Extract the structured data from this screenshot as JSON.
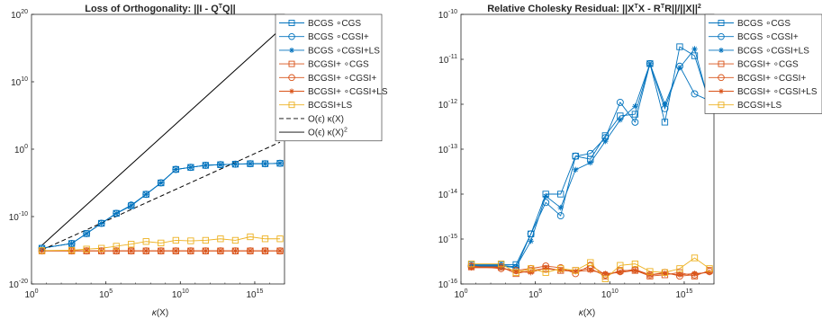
{
  "figure": {
    "left_title": "Loss of Orthogonality: ||I - Q",
    "left_title_sup": "T",
    "left_title_end": "Q||",
    "right_title": "Relative Cholesky Residual: ||X",
    "right_title_sup1": "T",
    "right_title_mid": "X - R",
    "right_title_sup2": "T",
    "right_title_mid2": "R||/||X||",
    "right_title_sup3": "2",
    "xlabel_kappa": "κ",
    "xlabel_arg": "(X)"
  },
  "colors": {
    "blue": "#0072BD",
    "orange": "#D95319",
    "yellow": "#EDB120",
    "black": "#000000"
  },
  "chart_data": [
    {
      "type": "line",
      "title": "Loss of Orthogonality: ||I - Q^T Q||",
      "xlabel": "κ(X)",
      "ylabel": "",
      "xscale": "log",
      "yscale": "log",
      "xlim": [
        1,
        1e+17
      ],
      "ylim": [
        1e-20,
        1e+20
      ],
      "xticks": [
        {
          "base": "10",
          "exp": "0",
          "value": 1
        },
        {
          "base": "10",
          "exp": "5",
          "value": 100000.0
        },
        {
          "base": "10",
          "exp": "10",
          "value": 10000000000.0
        },
        {
          "base": "10",
          "exp": "15",
          "value": 1000000000000000.0
        }
      ],
      "yticks": [
        {
          "base": "10",
          "exp": "-20",
          "value": 1e-20
        },
        {
          "base": "10",
          "exp": "-10",
          "value": 1e-10
        },
        {
          "base": "10",
          "exp": "0",
          "value": 1
        },
        {
          "base": "10",
          "exp": "10",
          "value": 10000000000.0
        },
        {
          "base": "10",
          "exp": "20",
          "value": 1e+20
        }
      ],
      "legend_position": "right",
      "x": [
        5.0,
        500.0,
        5000.0,
        50000.0,
        500000.0,
        5000000.0,
        50000000.0,
        500000000.0,
        5000000000.0,
        50000000000.0,
        500000000000.0,
        5000000000000.0,
        50000000000000.0,
        500000000000000.0,
        5000000000000000.0,
        5e+16
      ],
      "series": [
        {
          "name": "BCGS ∘CGS",
          "color": "blue",
          "marker": "square",
          "style": "solid",
          "values": [
            2e-15,
            1e-14,
            3e-13,
            1e-11,
            3e-10,
            4e-09,
            2e-07,
            1e-05,
            0.001,
            0.002,
            0.004,
            0.005,
            0.006,
            0.007,
            0.007,
            0.008
          ]
        },
        {
          "name": "BCGS ∘CGSI+",
          "color": "blue",
          "marker": "circle",
          "style": "solid",
          "values": [
            2e-15,
            1e-14,
            3e-13,
            1e-11,
            3e-10,
            5e-09,
            2e-07,
            1e-05,
            0.001,
            0.002,
            0.004,
            0.005,
            0.006,
            0.007,
            0.007,
            0.008
          ]
        },
        {
          "name": "BCGS ∘CGSI+LS",
          "color": "blue",
          "marker": "asterisk",
          "style": "solid",
          "values": [
            2e-15,
            1e-14,
            3e-13,
            1e-11,
            3e-10,
            4e-09,
            2e-07,
            1e-05,
            0.001,
            0.002,
            0.004,
            0.005,
            0.006,
            0.007,
            0.007,
            0.008
          ]
        },
        {
          "name": "BCGSI+ ∘CGS",
          "color": "orange",
          "marker": "square",
          "style": "solid",
          "values": [
            8e-16,
            8e-16,
            8e-16,
            8e-16,
            8e-16,
            8e-16,
            8e-16,
            8e-16,
            8e-16,
            8e-16,
            8e-16,
            8e-16,
            8e-16,
            8e-16,
            8e-16,
            8e-16
          ]
        },
        {
          "name": "BCGSI+ ∘CGSI+",
          "color": "orange",
          "marker": "circle",
          "style": "solid",
          "values": [
            8e-16,
            8e-16,
            8e-16,
            8e-16,
            8e-16,
            8e-16,
            8e-16,
            8e-16,
            8e-16,
            8e-16,
            8e-16,
            8e-16,
            8e-16,
            8e-16,
            8e-16,
            8e-16
          ]
        },
        {
          "name": "BCGSI+ ∘CGSI+LS",
          "color": "orange",
          "marker": "asterisk",
          "style": "solid",
          "values": [
            8e-16,
            8e-16,
            8e-16,
            8e-16,
            8e-16,
            8e-16,
            8e-16,
            8e-16,
            8e-16,
            8e-16,
            8e-16,
            8e-16,
            8e-16,
            8e-16,
            8e-16,
            8e-16
          ]
        },
        {
          "name": "BCGSI+LS",
          "color": "yellow",
          "marker": "square",
          "style": "solid",
          "values": [
            9e-16,
            1e-15,
            1.5e-15,
            2e-15,
            4e-15,
            8e-15,
            2e-14,
            1.2e-14,
            3e-14,
            2.5e-14,
            3e-14,
            5e-14,
            3e-14,
            1e-13,
            5e-14,
            5e-14
          ]
        },
        {
          "name": "O(ϵ) κ(X)",
          "color": "black",
          "marker": "none",
          "style": "dashed",
          "x": [
            5.0,
            5e+16
          ],
          "values": [
            1.1e-15,
            11.0
          ]
        },
        {
          "name": "O(ϵ) κ(X)^2",
          "color": "black",
          "marker": "none",
          "style": "solid",
          "x": [
            5.0,
            5e+16
          ],
          "values": [
            5.5e-15,
            5.5e+17
          ]
        }
      ],
      "legend": [
        {
          "series": 0,
          "label": "BCGS ∘CGS"
        },
        {
          "series": 1,
          "label": "BCGS ∘CGSI+"
        },
        {
          "series": 2,
          "label": "BCGS ∘CGSI+LS"
        },
        {
          "series": 3,
          "label": "BCGSI+ ∘CGS"
        },
        {
          "series": 4,
          "label": "BCGSI+ ∘CGSI+"
        },
        {
          "series": 5,
          "label": "BCGSI+ ∘CGSI+LS"
        },
        {
          "series": 6,
          "label": "BCGSI+LS"
        },
        {
          "series": 7,
          "label": "O(ϵ) κ(X)"
        },
        {
          "series": 8,
          "label": "O(ϵ) κ(X)",
          "sup": "2"
        }
      ]
    },
    {
      "type": "line",
      "title": "Relative Cholesky Residual: ||X^T X - R^T R||/||X||^2",
      "xlabel": "κ(X)",
      "ylabel": "",
      "xscale": "log",
      "yscale": "log",
      "xlim": [
        1,
        1e+17
      ],
      "ylim": [
        1e-16,
        1e-10
      ],
      "xticks": [
        {
          "base": "10",
          "exp": "0",
          "value": 1
        },
        {
          "base": "10",
          "exp": "5",
          "value": 100000.0
        },
        {
          "base": "10",
          "exp": "10",
          "value": 10000000000.0
        },
        {
          "base": "10",
          "exp": "15",
          "value": 1000000000000000.0
        }
      ],
      "yticks": [
        {
          "base": "10",
          "exp": "-16",
          "value": 1e-16
        },
        {
          "base": "10",
          "exp": "-15",
          "value": 1e-15
        },
        {
          "base": "10",
          "exp": "-14",
          "value": 1e-14
        },
        {
          "base": "10",
          "exp": "-13",
          "value": 1e-13
        },
        {
          "base": "10",
          "exp": "-12",
          "value": 1e-12
        },
        {
          "base": "10",
          "exp": "-11",
          "value": 1e-11
        },
        {
          "base": "10",
          "exp": "-10",
          "value": 1e-10
        }
      ],
      "legend_position": "top-right",
      "x": [
        5.0,
        500.0,
        5000.0,
        50000.0,
        500000.0,
        5000000.0,
        50000000.0,
        500000000.0,
        5000000000.0,
        50000000000.0,
        500000000000.0,
        5000000000000.0,
        50000000000000.0,
        500000000000000.0,
        5000000000000000.0,
        5e+16
      ],
      "series": [
        {
          "name": "BCGS ∘CGS",
          "color": "blue",
          "marker": "square",
          "style": "solid",
          "values": [
            2.7e-16,
            2.7e-16,
            2.7e-16,
            1.3e-15,
            1e-14,
            1e-14,
            7e-14,
            6e-14,
            2e-13,
            5.5e-13,
            6e-13,
            8e-12,
            4e-13,
            1.9e-11,
            1.2e-11,
            1.1e-12
          ]
        },
        {
          "name": "BCGS ∘CGSI+",
          "color": "blue",
          "marker": "circle",
          "style": "solid",
          "values": [
            2.5e-16,
            2.5e-16,
            2.3e-16,
            1.3e-15,
            6.5e-15,
            3.3e-15,
            7e-14,
            8e-14,
            1.8e-13,
            1.1e-12,
            4e-13,
            8e-12,
            8e-13,
            7e-12,
            1.7e-12,
            1.2e-12
          ]
        },
        {
          "name": "BCGS ∘CGSI+LS",
          "color": "blue",
          "marker": "asterisk",
          "style": "solid",
          "values": [
            2.6e-16,
            2.6e-16,
            2.4e-16,
            9e-16,
            9e-15,
            5e-15,
            3.5e-14,
            5e-14,
            1.5e-13,
            4.5e-13,
            9e-13,
            8e-12,
            1e-12,
            6.5e-12,
            1.7e-11,
            1e-12
          ]
        },
        {
          "name": "BCGSI+ ∘CGS",
          "color": "orange",
          "marker": "square",
          "style": "solid",
          "values": [
            2.4e-16,
            2.4e-16,
            1.7e-16,
            2e-16,
            2.2e-16,
            2e-16,
            2e-16,
            2.2e-16,
            1.5e-16,
            2e-16,
            2e-16,
            1.5e-16,
            1.6e-16,
            1.8e-16,
            1.5e-16,
            2e-16
          ]
        },
        {
          "name": "BCGSI+ ∘CGSI+",
          "color": "orange",
          "marker": "circle",
          "style": "solid",
          "values": [
            2.5e-16,
            2.2e-16,
            2e-16,
            2.2e-16,
            2.5e-16,
            2.3e-16,
            1.7e-16,
            2.6e-16,
            1.6e-16,
            1.9e-16,
            2.1e-16,
            1.6e-16,
            1.8e-16,
            1.5e-16,
            1.6e-16,
            1.9e-16
          ]
        },
        {
          "name": "BCGSI+ ∘CGSI+LS",
          "color": "orange",
          "marker": "asterisk",
          "style": "solid",
          "values": [
            2.3e-16,
            2.3e-16,
            1.9e-16,
            1.8e-16,
            2.3e-16,
            2e-16,
            1.9e-16,
            2e-16,
            1.7e-16,
            1.8e-16,
            2e-16,
            1.6e-16,
            1.7e-16,
            1.6e-16,
            1.7e-16,
            1.8e-16
          ]
        },
        {
          "name": "BCGSI+LS",
          "color": "yellow",
          "marker": "square",
          "style": "solid",
          "values": [
            2.8e-16,
            2.8e-16,
            1.8e-16,
            2.2e-16,
            1.8e-16,
            2.2e-16,
            2e-16,
            3e-16,
            1.3e-16,
            2.6e-16,
            2.8e-16,
            1.9e-16,
            1.8e-16,
            2.2e-16,
            3.8e-16,
            2.2e-16
          ]
        }
      ],
      "legend": [
        {
          "series": 0,
          "label": "BCGS ∘CGS"
        },
        {
          "series": 1,
          "label": "BCGS ∘CGSI+"
        },
        {
          "series": 2,
          "label": "BCGS ∘CGSI+LS"
        },
        {
          "series": 3,
          "label": "BCGSI+ ∘CGS"
        },
        {
          "series": 4,
          "label": "BCGSI+ ∘CGSI+"
        },
        {
          "series": 5,
          "label": "BCGSI+ ∘CGSI+LS"
        },
        {
          "series": 6,
          "label": "BCGSI+LS"
        }
      ]
    }
  ]
}
